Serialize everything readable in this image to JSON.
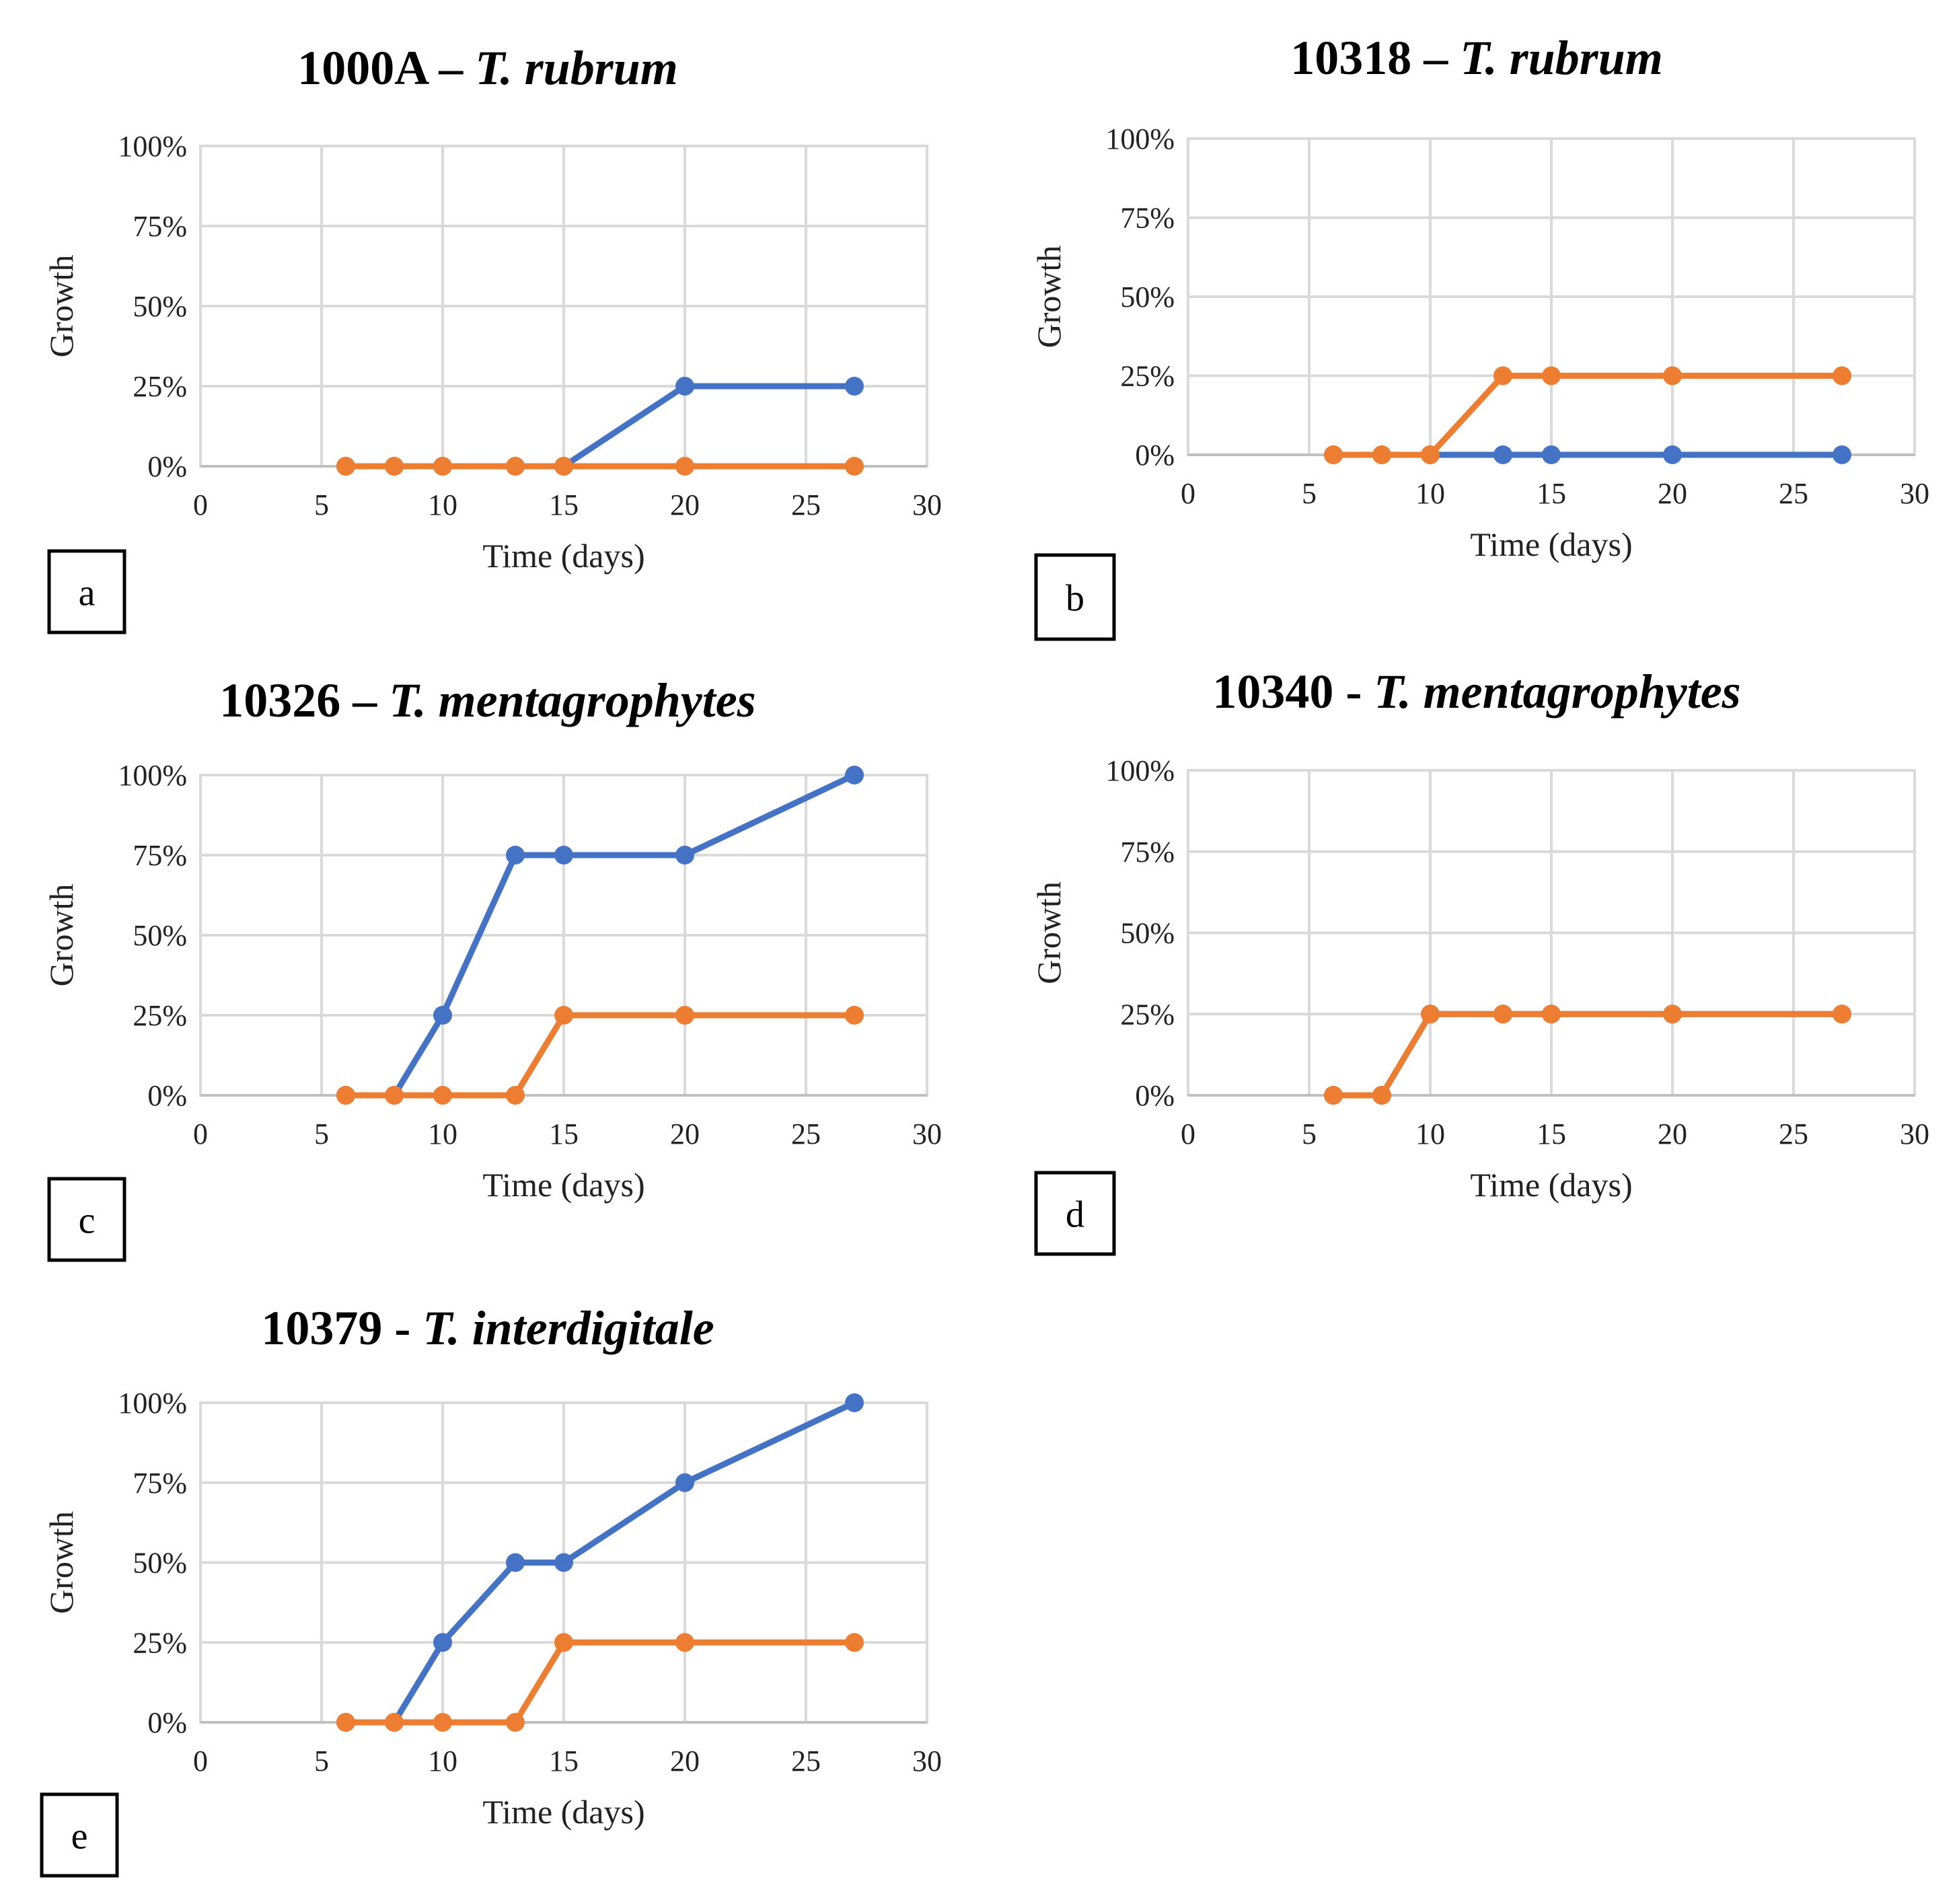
{
  "colors": {
    "series_blue": "#4472c4",
    "series_orange": "#ed7d31"
  },
  "chart_data": [
    {
      "type": "line",
      "panel": "a",
      "title_code": "1000A – ",
      "title_species": "T. rubrum",
      "xlabel": "Time (days)",
      "ylabel": "Growth",
      "xlim": [
        0,
        30
      ],
      "ylim": [
        0,
        100
      ],
      "x_ticks": [
        "0",
        "5",
        "10",
        "15",
        "20",
        "25",
        "30"
      ],
      "y_ticks": [
        "0%",
        "25%",
        "50%",
        "75%",
        "100%"
      ],
      "series": [
        {
          "color": "#4472c4",
          "x": [
            6,
            8,
            10,
            13,
            15,
            20,
            27
          ],
          "values": [
            0,
            0,
            0,
            0,
            0,
            25,
            25
          ]
        },
        {
          "color": "#ed7d31",
          "x": [
            6,
            8,
            10,
            13,
            15,
            20,
            27
          ],
          "values": [
            0,
            0,
            0,
            0,
            0,
            0,
            0
          ]
        }
      ]
    },
    {
      "type": "line",
      "panel": "b",
      "title_code": "10318 – ",
      "title_species": "T. rubrum",
      "xlabel": "Time (days)",
      "ylabel": "Growth",
      "xlim": [
        0,
        30
      ],
      "ylim": [
        0,
        100
      ],
      "x_ticks": [
        "0",
        "5",
        "10",
        "15",
        "20",
        "25",
        "30"
      ],
      "y_ticks": [
        "0%",
        "25%",
        "50%",
        "75%",
        "100%"
      ],
      "series": [
        {
          "color": "#4472c4",
          "x": [
            6,
            8,
            10,
            13,
            15,
            20,
            27
          ],
          "values": [
            0,
            0,
            0,
            0,
            0,
            0,
            0
          ]
        },
        {
          "color": "#ed7d31",
          "x": [
            6,
            8,
            10,
            13,
            15,
            20,
            27
          ],
          "values": [
            0,
            0,
            0,
            25,
            25,
            25,
            25
          ]
        }
      ]
    },
    {
      "type": "line",
      "panel": "c",
      "title_code": "10326 – ",
      "title_species": "T. mentagrophytes",
      "xlabel": "Time (days)",
      "ylabel": "Growth",
      "xlim": [
        0,
        30
      ],
      "ylim": [
        0,
        100
      ],
      "x_ticks": [
        "0",
        "5",
        "10",
        "15",
        "20",
        "25",
        "30"
      ],
      "y_ticks": [
        "0%",
        "25%",
        "50%",
        "75%",
        "100%"
      ],
      "series": [
        {
          "color": "#4472c4",
          "x": [
            6,
            8,
            10,
            13,
            15,
            20,
            27
          ],
          "values": [
            0,
            0,
            25,
            75,
            75,
            75,
            100
          ]
        },
        {
          "color": "#ed7d31",
          "x": [
            6,
            8,
            10,
            13,
            15,
            20,
            27
          ],
          "values": [
            0,
            0,
            0,
            0,
            25,
            25,
            25
          ]
        }
      ]
    },
    {
      "type": "line",
      "panel": "d",
      "title_code": "10340 - ",
      "title_species": "T. mentagrophytes",
      "xlabel": "Time (days)",
      "ylabel": "Growth",
      "xlim": [
        0,
        30
      ],
      "ylim": [
        0,
        100
      ],
      "x_ticks": [
        "0",
        "5",
        "10",
        "15",
        "20",
        "25",
        "30"
      ],
      "y_ticks": [
        "0%",
        "25%",
        "50%",
        "75%",
        "100%"
      ],
      "series": [
        {
          "color": "#4472c4",
          "x": [
            6,
            8,
            10,
            13,
            15,
            20,
            27
          ],
          "values": [
            0,
            0,
            25,
            25,
            25,
            25,
            25
          ]
        },
        {
          "color": "#ed7d31",
          "x": [
            6,
            8,
            10,
            13,
            15,
            20,
            27
          ],
          "values": [
            0,
            0,
            25,
            25,
            25,
            25,
            25
          ]
        }
      ]
    },
    {
      "type": "line",
      "panel": "e",
      "title_code": "10379 - ",
      "title_species": "T. interdigitale",
      "xlabel": "Time (days)",
      "ylabel": "Growth",
      "xlim": [
        0,
        30
      ],
      "ylim": [
        0,
        100
      ],
      "x_ticks": [
        "0",
        "5",
        "10",
        "15",
        "20",
        "25",
        "30"
      ],
      "y_ticks": [
        "0%",
        "25%",
        "50%",
        "75%",
        "100%"
      ],
      "series": [
        {
          "color": "#4472c4",
          "x": [
            6,
            8,
            10,
            13,
            15,
            20,
            27
          ],
          "values": [
            0,
            0,
            25,
            50,
            50,
            75,
            100
          ]
        },
        {
          "color": "#ed7d31",
          "x": [
            6,
            8,
            10,
            13,
            15,
            20,
            27
          ],
          "values": [
            0,
            0,
            0,
            0,
            25,
            25,
            25
          ]
        }
      ]
    }
  ]
}
